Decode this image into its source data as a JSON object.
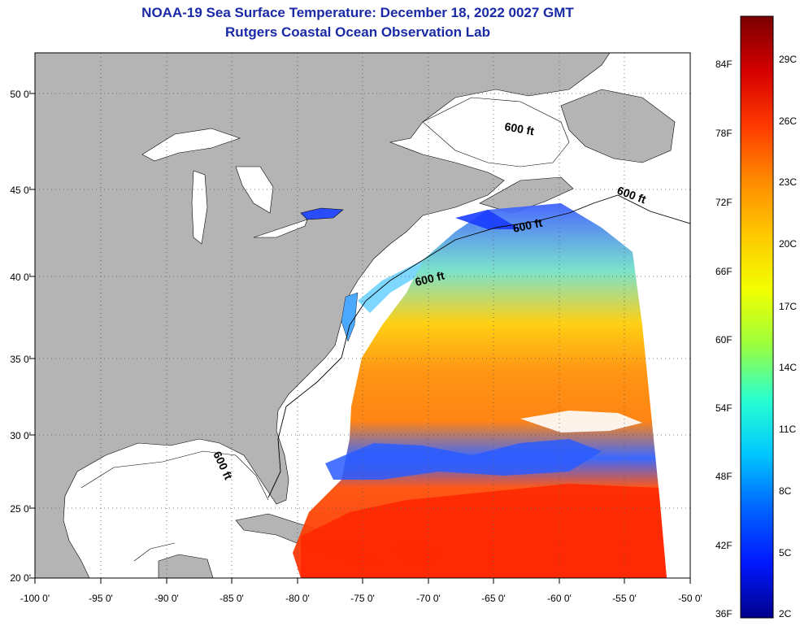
{
  "header": {
    "title": "NOAA-19 Sea Surface Temperature:  December 18, 2022 0027 GMT",
    "subtitle": "Rutgers Coastal Ocean Observation Lab"
  },
  "map": {
    "lon_ticks": [
      "-100 0'",
      "-95 0'",
      "-90 0'",
      "-85 0'",
      "-80 0'",
      "-75 0'",
      "-70 0'",
      "-65 0'",
      "-60 0'",
      "-55 0'",
      "-50 0'"
    ],
    "lat_ticks": [
      "50 0'",
      "45 0'",
      "40 0'",
      "35 0'",
      "30 0'",
      "25 0'",
      "20 0'"
    ],
    "contour_labels": [
      "600 ft",
      "600 ft",
      "600 ft",
      "600 ft",
      "600 ft"
    ],
    "colors": {
      "land": "#b4b4b4",
      "ocean": "#ffffff",
      "grid": "#555555"
    }
  },
  "colorbar": {
    "f_labels": [
      "84F",
      "78F",
      "72F",
      "66F",
      "60F",
      "54F",
      "48F",
      "42F",
      "36F"
    ],
    "c_labels": [
      "29C",
      "26C",
      "23C",
      "20C",
      "17C",
      "14C",
      "11C",
      "8C",
      "5C",
      "2C"
    ],
    "gradient": [
      "#7a0000",
      "#d40000",
      "#ff3a00",
      "#ff8a00",
      "#ffc800",
      "#f2ff00",
      "#9cff3c",
      "#2affd0",
      "#00c8ff",
      "#0064ff",
      "#0018ff",
      "#00008c"
    ]
  }
}
